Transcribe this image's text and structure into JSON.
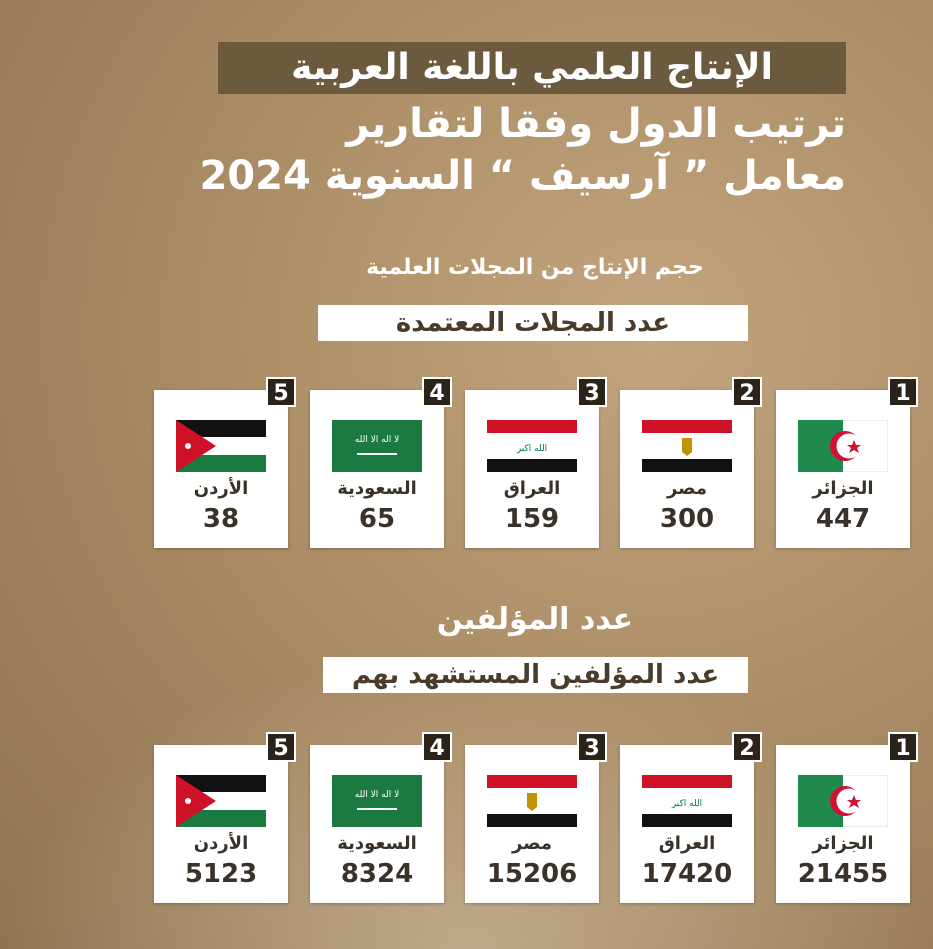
{
  "header": {
    "title": "الإنتاج العلمي باللغة العربية",
    "line2": "ترتيب الدول وفقا لتقارير",
    "line3": "معامل ” آرسيف “ السنوية 2024"
  },
  "section1": {
    "subtitle": "حجم الإنتاج من المجلات العلمية",
    "label": "عدد المجلات المعتمدة",
    "items": [
      {
        "rank": "1",
        "country": "الجزائر",
        "flag": "algeria",
        "value": "447"
      },
      {
        "rank": "2",
        "country": "مصر",
        "flag": "egypt",
        "value": "300"
      },
      {
        "rank": "3",
        "country": "العراق",
        "flag": "iraq",
        "value": "159"
      },
      {
        "rank": "4",
        "country": "السعودية",
        "flag": "saudi",
        "value": "65"
      },
      {
        "rank": "5",
        "country": "الأردن",
        "flag": "jordan",
        "value": "38"
      }
    ]
  },
  "section2": {
    "subtitle": "عدد المؤلفين",
    "label": "عدد المؤلفين المستشهد بهم",
    "items": [
      {
        "rank": "1",
        "country": "الجزائر",
        "flag": "algeria",
        "value": "21455"
      },
      {
        "rank": "2",
        "country": "العراق",
        "flag": "iraq",
        "value": "17420"
      },
      {
        "rank": "3",
        "country": "مصر",
        "flag": "egypt",
        "value": "15206"
      },
      {
        "rank": "4",
        "country": "السعودية",
        "flag": "saudi",
        "value": "8324"
      },
      {
        "rank": "5",
        "country": "الأردن",
        "flag": "jordan",
        "value": "5123"
      }
    ]
  },
  "colors": {
    "title_bg": "#6b5a3e",
    "badge": "#2b231a"
  }
}
